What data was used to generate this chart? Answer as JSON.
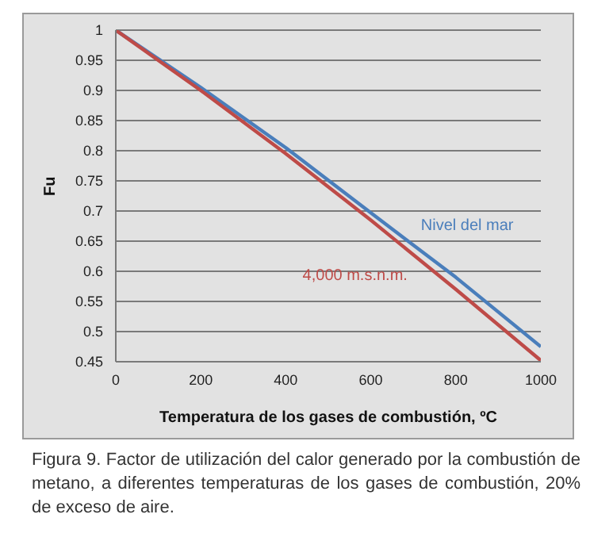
{
  "chart_data": {
    "type": "line",
    "xlabel": "Temperatura de los gases de combustión, ºC",
    "ylabel": "Fu",
    "x": [
      0,
      200,
      400,
      600,
      800,
      1000
    ],
    "series": [
      {
        "name": "Nivel del mar",
        "color": "#4a7ebb",
        "values": [
          1,
          0.905,
          0.805,
          0.697,
          0.59,
          0.475
        ]
      },
      {
        "name": "4,000 m.s.n.m.",
        "color": "#be4b48",
        "values": [
          1,
          0.9,
          0.795,
          0.685,
          0.57,
          0.452
        ]
      }
    ],
    "xlim": [
      0,
      1000
    ],
    "xticks": [
      0,
      200,
      400,
      600,
      800,
      1000
    ],
    "ylim": [
      0.45,
      1
    ],
    "yticks": [
      0.45,
      0.5,
      0.55,
      0.6,
      0.65,
      0.7,
      0.75,
      0.8,
      0.85,
      0.9,
      0.95,
      1
    ],
    "grid": "y",
    "legend": false,
    "marker": "none",
    "line_style": "solid",
    "annotations": [
      "Figura 9. Factor de utilización del calor generado por la combustión de metano, a diferentes temperaturas de los gases de combustión, 20% de exceso de aire."
    ]
  }
}
